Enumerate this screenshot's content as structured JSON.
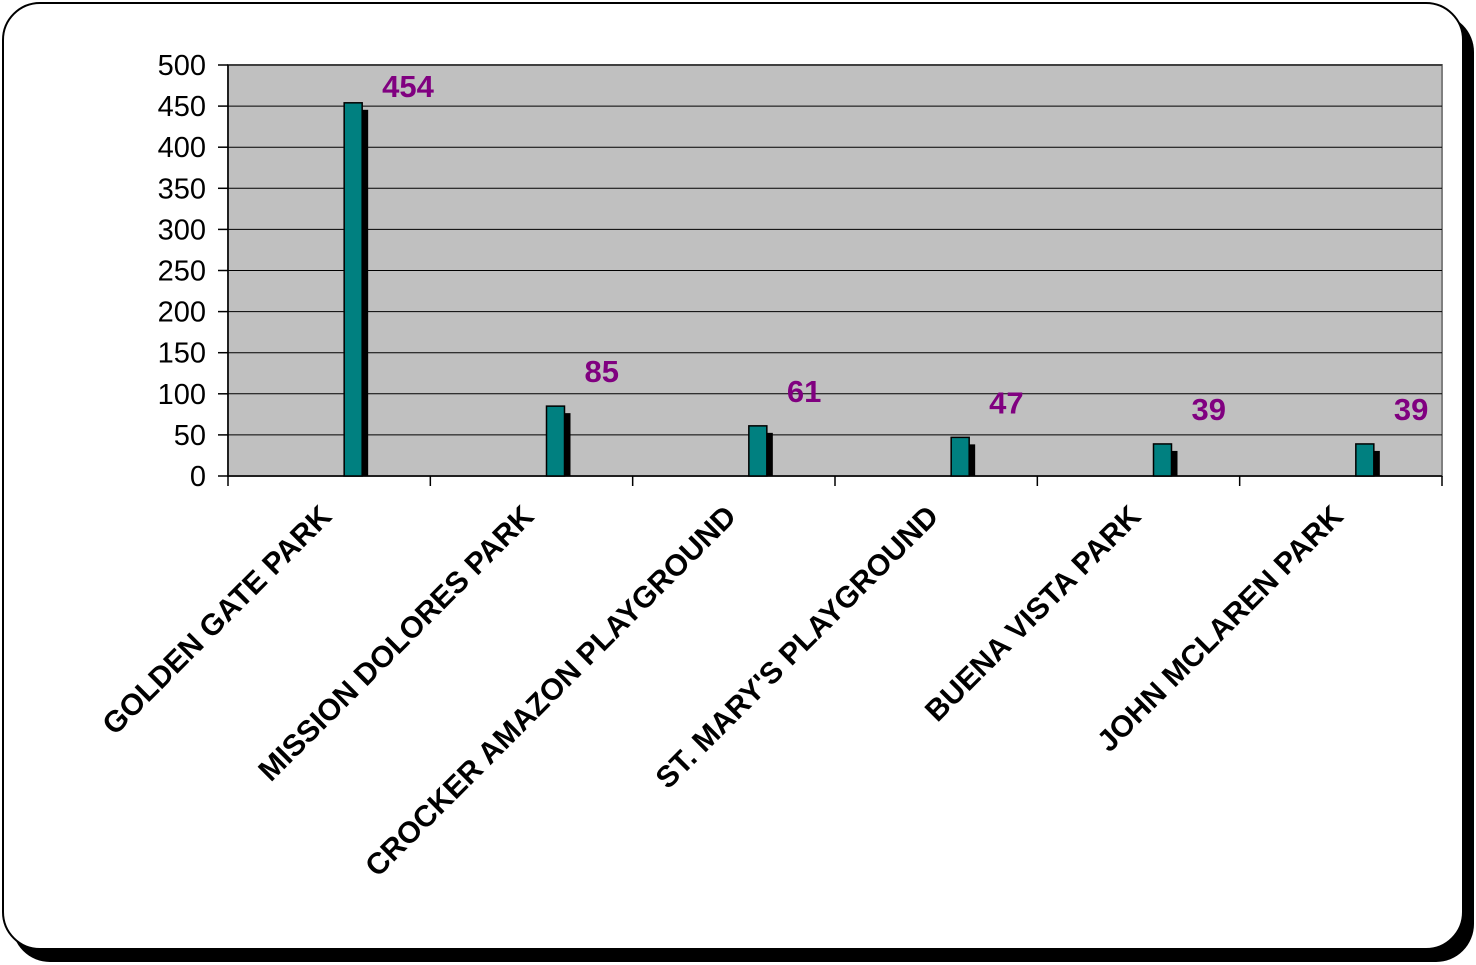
{
  "chart_data": {
    "type": "bar",
    "title": "",
    "xlabel": "",
    "ylabel": "",
    "ylim": [
      0,
      500
    ],
    "yticks": [
      0,
      50,
      100,
      150,
      200,
      250,
      300,
      350,
      400,
      450,
      500
    ],
    "grid": true,
    "legend": "none",
    "categories": [
      "GOLDEN GATE PARK",
      "MISSION DOLORES PARK",
      "CROCKER AMAZON PLAYGROUND",
      "ST. MARY'S PLAYGROUND",
      "BUENA VISTA PARK",
      "JOHN MCLAREN PARK"
    ],
    "values": [
      454,
      85,
      61,
      47,
      39,
      39
    ],
    "data_labels": [
      "454",
      "85",
      "61",
      "47",
      "39",
      "39"
    ],
    "colors": {
      "bar": "#008080",
      "bar_shadow": "#000000",
      "plot_background": "#C0C0C0",
      "data_label": "#800080",
      "gridline": "#000000"
    }
  }
}
